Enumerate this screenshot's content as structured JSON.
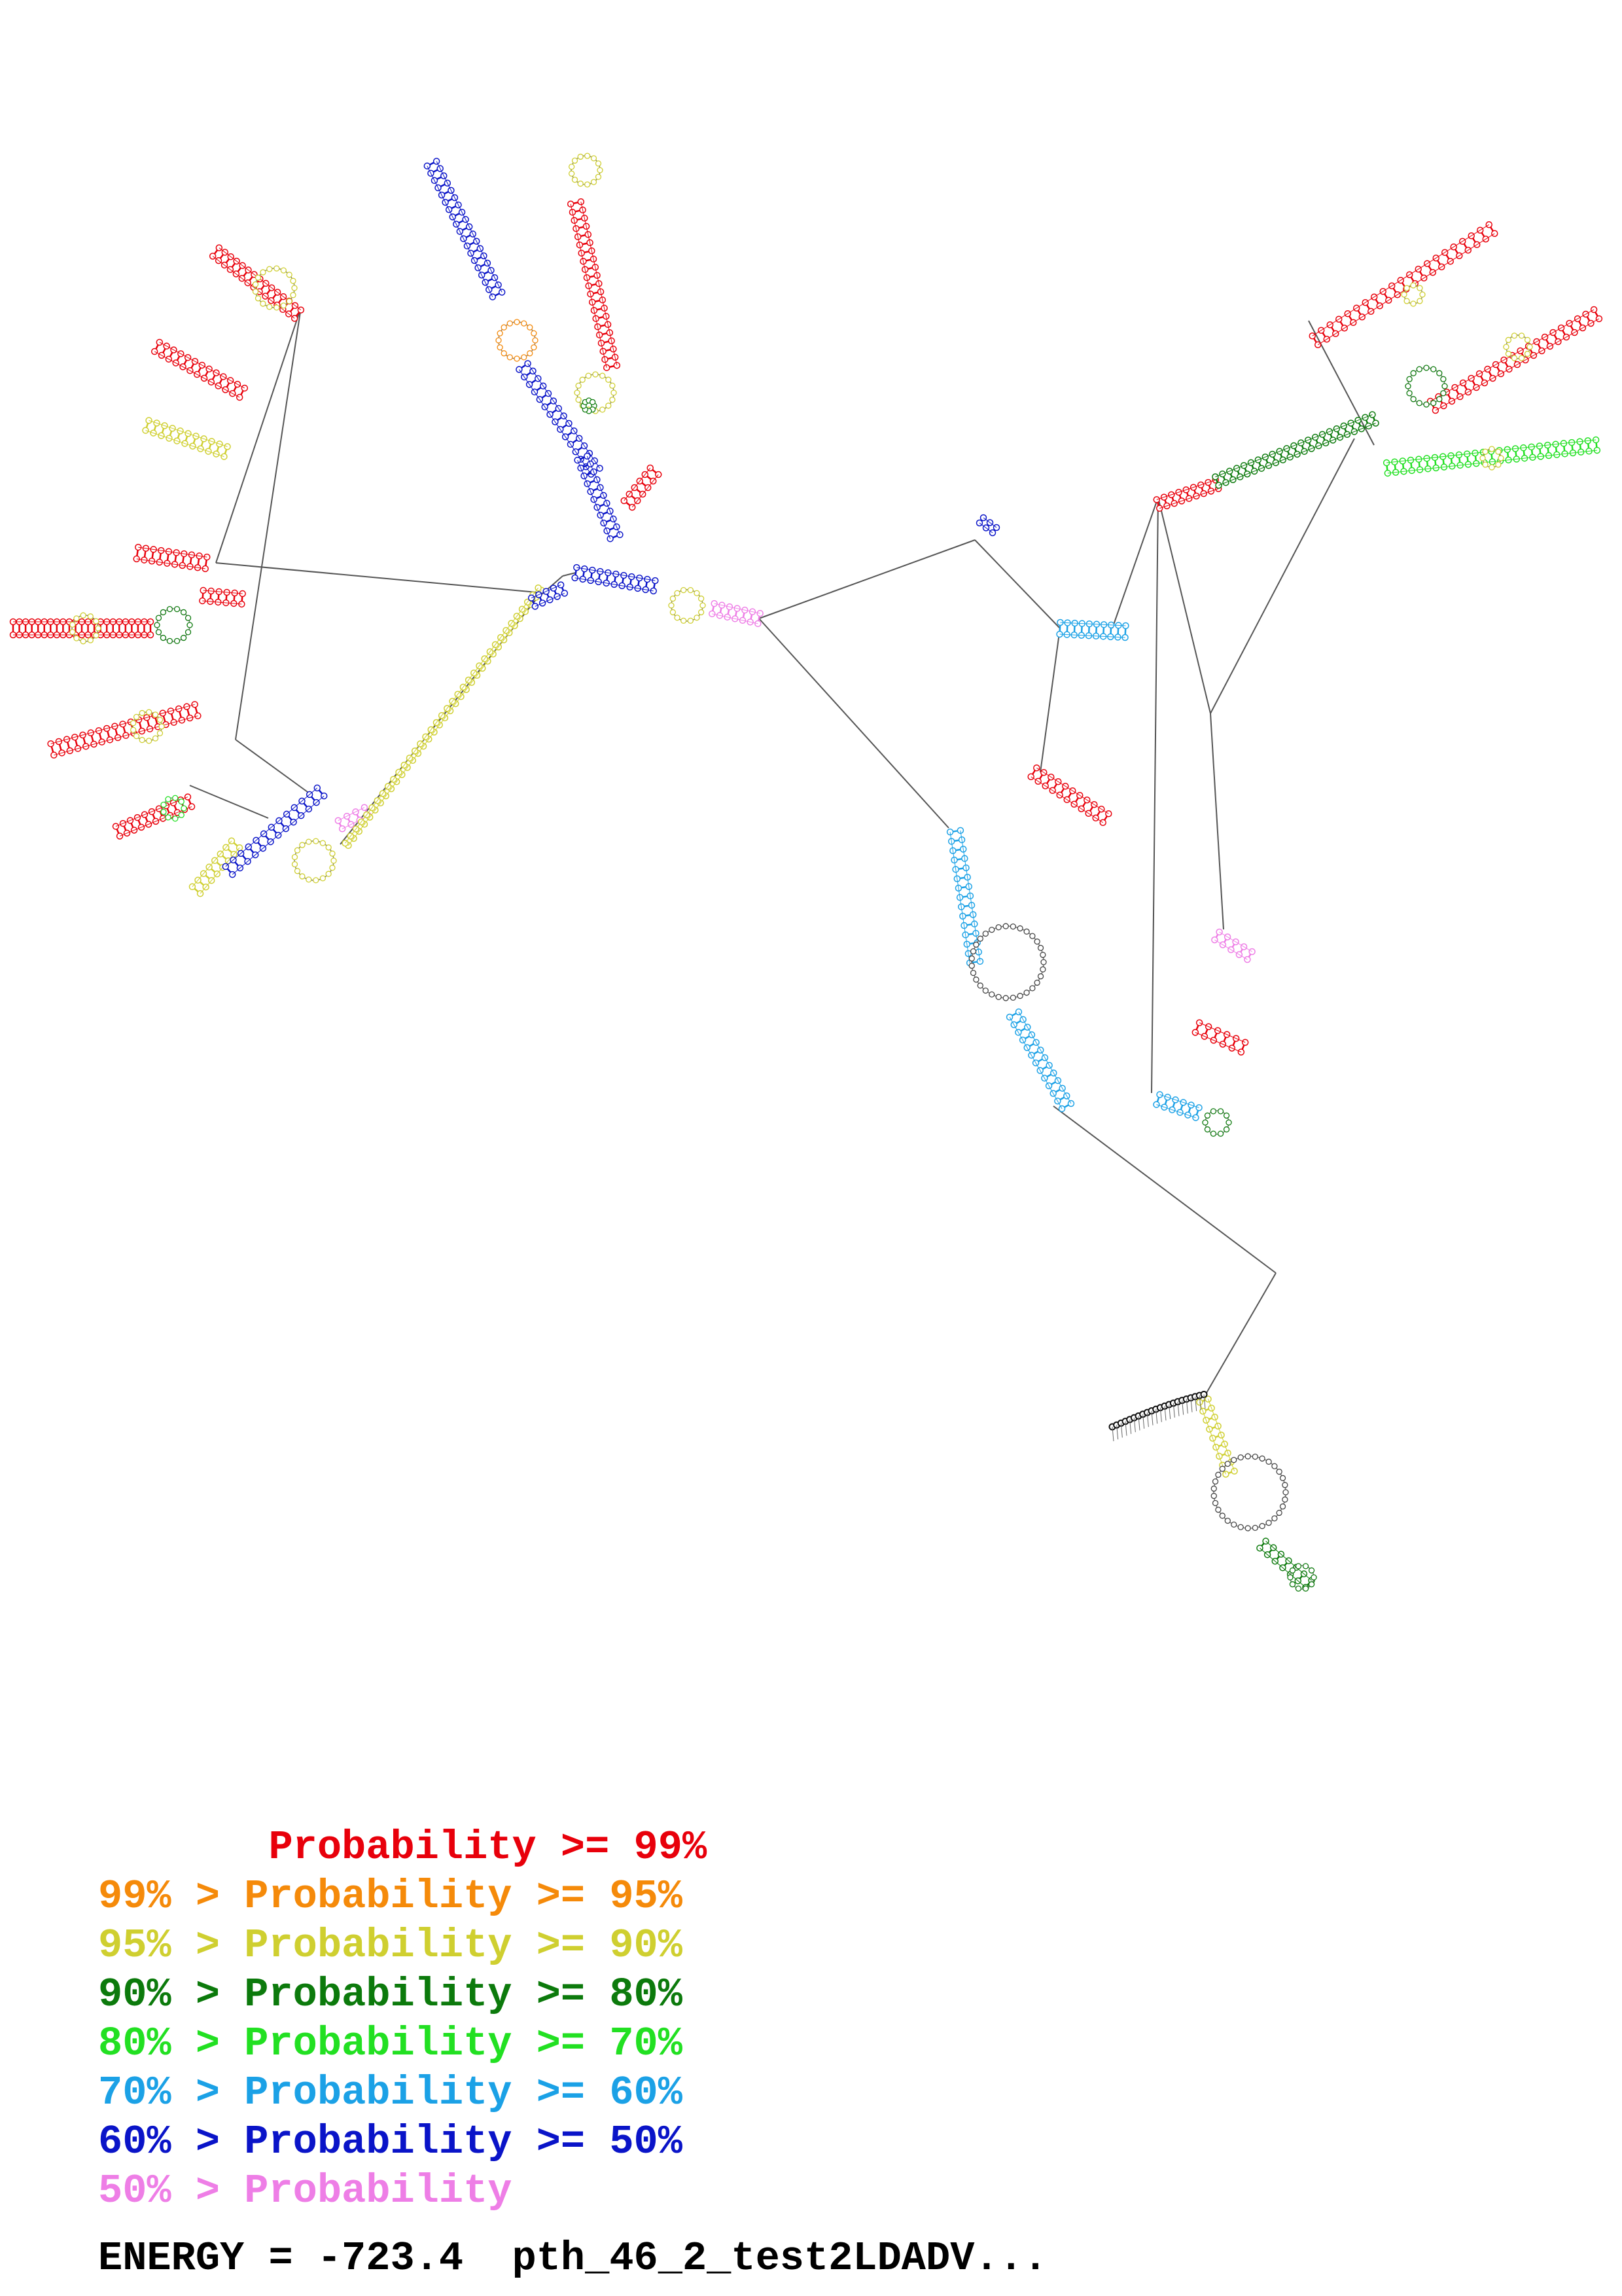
{
  "legend": [
    {
      "prefix": "       ",
      "text": "Probability >= 99%",
      "color": "#e8000b"
    },
    {
      "prefix": "",
      "text": "99% > Probability >= 95%",
      "color": "#f58a0a"
    },
    {
      "prefix": "",
      "text": "95% > Probability >= 90%",
      "color": "#cfcf30"
    },
    {
      "prefix": "",
      "text": "90% > Probability >= 80%",
      "color": "#0c7a0c"
    },
    {
      "prefix": "",
      "text": "80% > Probability >= 70%",
      "color": "#22e022"
    },
    {
      "prefix": "",
      "text": "70% > Probability >= 60%",
      "color": "#1ba1e6"
    },
    {
      "prefix": "",
      "text": "60% > Probability >= 50%",
      "color": "#0a14c8"
    },
    {
      "prefix": "",
      "text": "50% > Probability",
      "color": "#ee7ee6"
    }
  ],
  "energy": {
    "label": "ENERGY = -723.4  pth_46_2_test2LDADV..."
  },
  "structure": {
    "backbone_color": "#555555",
    "base_ring_color": "#444444"
  }
}
